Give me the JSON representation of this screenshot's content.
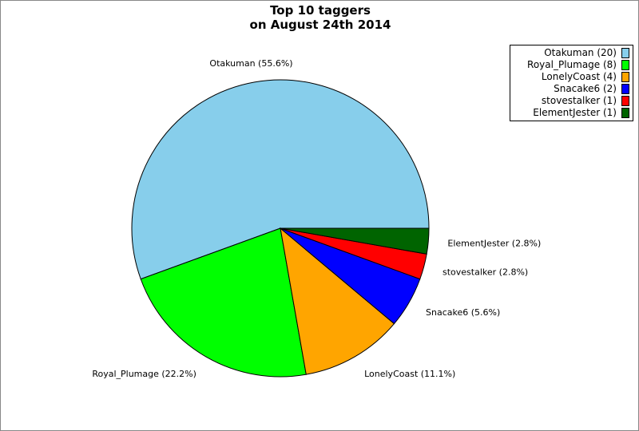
{
  "chart_data": {
    "type": "pie",
    "title": "Top 10 taggers",
    "subtitle": "on August 24th 2014",
    "legend_position": "top-right",
    "slices": [
      {
        "name": "Otakuman",
        "value": 20,
        "legend": "Otakuman (20)",
        "label": "Otakuman (55.6%)",
        "color": "#87CEEB"
      },
      {
        "name": "Royal_Plumage",
        "value": 8,
        "legend": "Royal_Plumage (8)",
        "label": "Royal_Plumage (22.2%)",
        "color": "#00FF00"
      },
      {
        "name": "LonelyCoast",
        "value": 4,
        "legend": "LonelyCoast (4)",
        "label": "LonelyCoast (11.1%)",
        "color": "#FFA500"
      },
      {
        "name": "Snacake6",
        "value": 2,
        "legend": "Snacake6 (2)",
        "label": "Snacake6 (5.6%)",
        "color": "#0000FF"
      },
      {
        "name": "stovestalker",
        "value": 1,
        "legend": "stovestalker (1)",
        "label": "stovestalker (2.8%)",
        "color": "#FF0000"
      },
      {
        "name": "ElementJester",
        "value": 1,
        "legend": "ElementJester (1)",
        "label": "ElementJester (2.8%)",
        "color": "#006400"
      }
    ]
  }
}
